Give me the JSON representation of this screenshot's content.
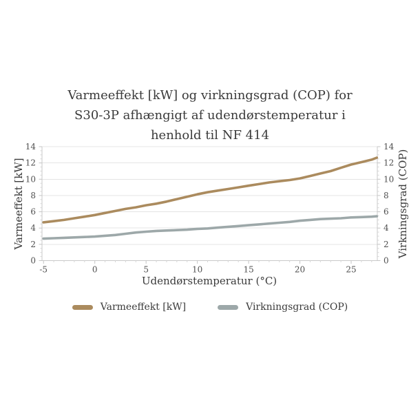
{
  "title_lines": [
    "Varmeeffekt [kW] og virkningsgrad (COP) for",
    "S30-3P afhængigt af udendørstemperatur i",
    "henhold til NF 414"
  ],
  "axes": {
    "x_label": "Udendørstemperatur (°C)",
    "y_left_label": "Varmeeffekt [kW]",
    "y_right_label": "Virkningsgrad (COP)"
  },
  "legend": {
    "items": [
      {
        "label": "Varmeeffekt [kW]",
        "color": "#ab8b5e"
      },
      {
        "label": "Virkningsgrad (COP)",
        "color": "#9da8a9"
      }
    ]
  },
  "colors": {
    "varmeeffekt_line": "#ab8b5e",
    "virkningsgrad_line": "#9da8a9",
    "grid_line": "#e4e4e4",
    "axis_line": "#c9c9c9",
    "major_tick": "#c4c4c4",
    "minor_tick": "#d6d6d6",
    "tick_label": "#4f4f4f",
    "title_text": "#3a3a3a"
  },
  "chart_data": {
    "type": "line",
    "title": "Varmeeffekt [kW] og virkningsgrad (COP) for S30-3P afhængigt af udendørstemperatur i henhold til NF 414",
    "xlabel": "Udendørstemperatur (°C)",
    "ylabel_left": "Varmeeffekt [kW]",
    "ylabel_right": "Virkningsgrad (COP)",
    "xlim": [
      -5.15,
      27.55
    ],
    "ylim": [
      0,
      14
    ],
    "x_major_ticks": [
      -5,
      0,
      5,
      10,
      15,
      20,
      25
    ],
    "x_minor_step": 1,
    "y_major_ticks": [
      0,
      2,
      4,
      6,
      8,
      10,
      12,
      14
    ],
    "y_minor_step": 0.5,
    "grid": "horizontal-only",
    "legend_position": "bottom",
    "x": [
      -5,
      -4,
      -3,
      -2,
      -1,
      0,
      1,
      2,
      3,
      4,
      5,
      6,
      7,
      8,
      9,
      10,
      11,
      12,
      13,
      14,
      15,
      16,
      17,
      18,
      19,
      20,
      21,
      22,
      23,
      24,
      25,
      26,
      27,
      27.5
    ],
    "series": [
      {
        "name": "Varmeeffekt [kW]",
        "axis": "left",
        "color": "#ab8b5e",
        "values": [
          4.7,
          4.85,
          5.0,
          5.2,
          5.4,
          5.6,
          5.85,
          6.1,
          6.35,
          6.55,
          6.8,
          7.0,
          7.25,
          7.55,
          7.85,
          8.15,
          8.4,
          8.6,
          8.8,
          9.0,
          9.2,
          9.4,
          9.6,
          9.75,
          9.9,
          10.1,
          10.4,
          10.7,
          11.0,
          11.4,
          11.8,
          12.1,
          12.4,
          12.65
        ]
      },
      {
        "name": "Virkningsgrad (COP)",
        "axis": "right",
        "color": "#9da8a9",
        "values": [
          2.7,
          2.75,
          2.8,
          2.85,
          2.9,
          2.95,
          3.05,
          3.15,
          3.3,
          3.45,
          3.55,
          3.65,
          3.7,
          3.75,
          3.8,
          3.9,
          3.95,
          4.05,
          4.15,
          4.25,
          4.35,
          4.45,
          4.55,
          4.65,
          4.75,
          4.9,
          5.0,
          5.1,
          5.15,
          5.2,
          5.3,
          5.35,
          5.4,
          5.45
        ]
      }
    ]
  }
}
